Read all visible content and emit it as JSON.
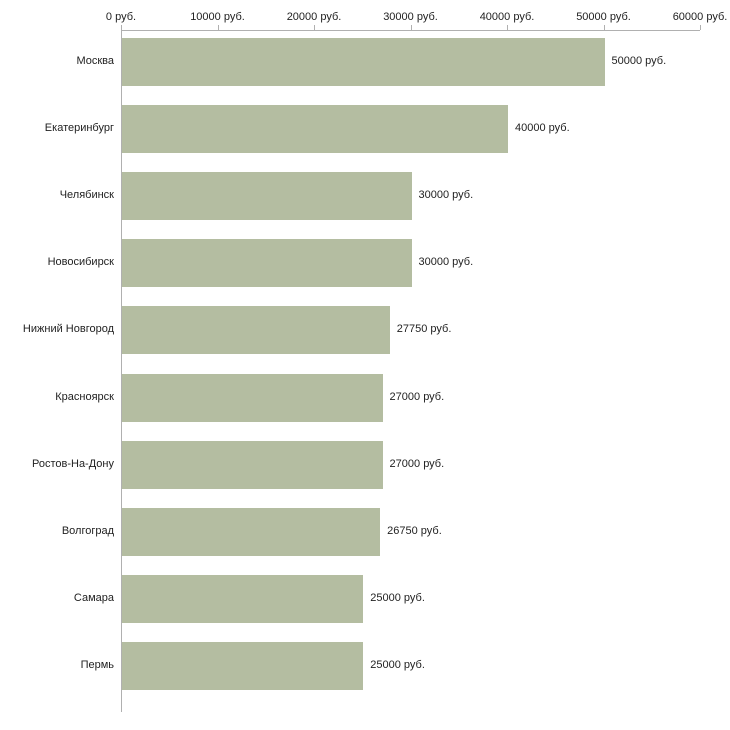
{
  "chart_data": {
    "type": "bar",
    "orientation": "horizontal",
    "title": "",
    "xlabel": "",
    "ylabel": "",
    "grid": false,
    "legend": false,
    "xlim": [
      0,
      60000
    ],
    "categories": [
      "Москва",
      "Екатеринбург",
      "Челябинск",
      "Новосибирск",
      "Нижний Новгород",
      "Красноярск",
      "Ростов-На-Дону",
      "Волгоград",
      "Самара",
      "Пермь"
    ],
    "values": [
      50000,
      40000,
      30000,
      30000,
      27750,
      27000,
      27000,
      26750,
      25000,
      25000
    ],
    "value_labels": [
      "50000 руб.",
      "40000 руб.",
      "30000 руб.",
      "30000 руб.",
      "27750 руб.",
      "27000 руб.",
      "27000 руб.",
      "26750 руб.",
      "25000 руб.",
      "25000 руб."
    ],
    "x_ticks": [
      {
        "value": 0,
        "label": "0 руб."
      },
      {
        "value": 10000,
        "label": "10000 руб."
      },
      {
        "value": 20000,
        "label": "20000 руб."
      },
      {
        "value": 30000,
        "label": "30000 руб."
      },
      {
        "value": 40000,
        "label": "40000 руб."
      },
      {
        "value": 50000,
        "label": "50000 руб."
      },
      {
        "value": 60000,
        "label": "60000 руб."
      }
    ],
    "bar_color": "#b4bda1",
    "axis_color": "#b0b0b0",
    "text_color": "#222222",
    "background": "#ffffff"
  }
}
